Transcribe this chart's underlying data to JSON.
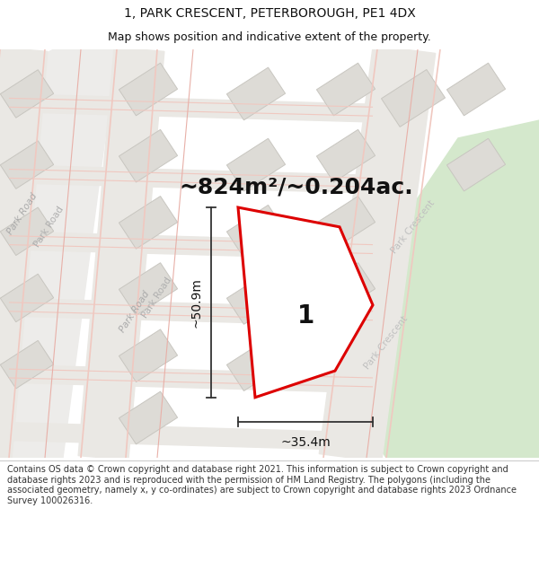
{
  "title_line1": "1, PARK CRESCENT, PETERBOROUGH, PE1 4DX",
  "title_line2": "Map shows position and indicative extent of the property.",
  "area_text": "~824m²/~0.204ac.",
  "width_label": "~35.4m",
  "height_label": "~50.9m",
  "plot_number": "1",
  "footer_text": "Contains OS data © Crown copyright and database right 2021. This information is subject to Crown copyright and database rights 2023 and is reproduced with the permission of HM Land Registry. The polygons (including the associated geometry, namely x, y co-ordinates) are subject to Crown copyright and database rights 2023 Ordnance Survey 100026316.",
  "map_bg": "#f5f3ef",
  "white_bg": "#ffffff",
  "road_pink": "#f0c8c0",
  "road_pink2": "#e8b0a8",
  "building_fill": "#dddbd6",
  "building_edge": "#c8c6c0",
  "plot_outline": "#dd0000",
  "plot_fill": "#ffffff",
  "green_fill": "#d4e8cc",
  "road_label": "#bbbbbb",
  "arrow_color": "#333333",
  "text_color": "#111111",
  "title_font": 10,
  "subtitle_font": 9,
  "area_font": 18,
  "label_font": 10,
  "plot_num_font": 20,
  "footer_font": 7
}
